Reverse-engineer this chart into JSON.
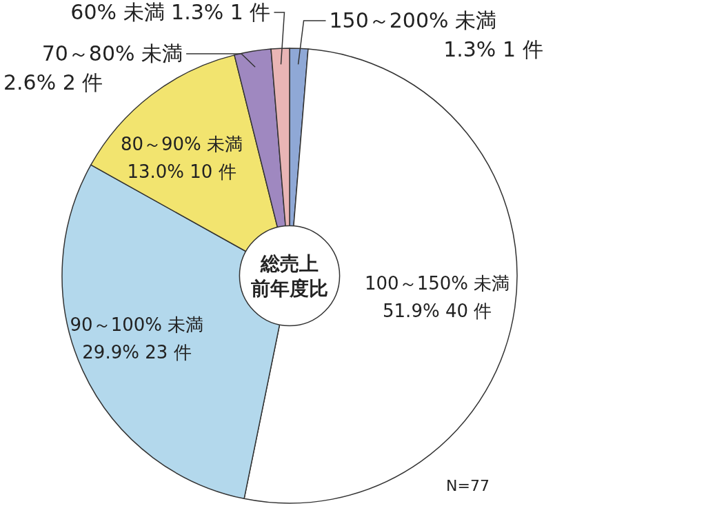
{
  "chart_data": {
    "type": "donut",
    "title": "総売上前年度比",
    "categories": [
      "150～200% 未満",
      "100～150% 未満",
      "90～100% 未満",
      "80～90% 未満",
      "70～80% 未満",
      "60% 未満"
    ],
    "values": [
      1.3,
      51.9,
      29.9,
      13.0,
      2.6,
      1.3
    ],
    "value_labels": [
      "1.3% 1 件",
      "51.9% 40 件",
      "29.9% 23 件",
      "13.0% 10 件",
      "2.6% 2 件",
      "1.3% 1 件"
    ],
    "colors": [
      "#8fa8d6",
      "#ffffff",
      "#b3d8ec",
      "#f2e46f",
      "#9f88c0",
      "#e9b5b5"
    ],
    "annotations": [
      "N=77"
    ]
  }
}
